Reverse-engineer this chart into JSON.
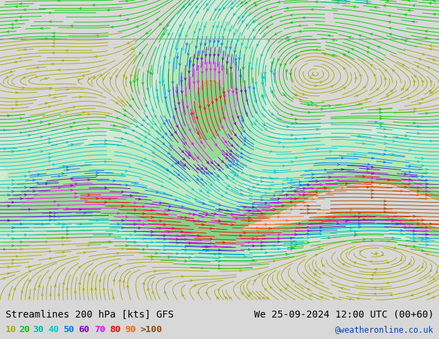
{
  "title_left": "Streamlines 200 hPa [kts] GFS",
  "title_right": "We 25-09-2024 12:00 UTC (00+60)",
  "credit": "@weatheronline.co.uk",
  "legend_values": [
    "10",
    "20",
    "30",
    "40",
    "50",
    "60",
    "70",
    "80",
    "90",
    ">100"
  ],
  "legend_colors": [
    "#aaaa00",
    "#00cc00",
    "#00bbaa",
    "#00cccc",
    "#0077ff",
    "#7700cc",
    "#ff00ff",
    "#ff0000",
    "#ff6600",
    "#994400"
  ],
  "streamline_colors": [
    "#aaaa00",
    "#00cc00",
    "#00bbaa",
    "#00cccc",
    "#0077ff",
    "#7700cc",
    "#ff00ff",
    "#ff0000",
    "#ff6600",
    "#994400"
  ],
  "bg_color": "#d8d8d8",
  "map_bg": "#f0f0f0",
  "font_color": "#000000",
  "title_fontsize": 10,
  "legend_fontsize": 9.5,
  "credit_color": "#0044bb",
  "figsize": [
    6.34,
    4.9
  ],
  "dpi": 100
}
